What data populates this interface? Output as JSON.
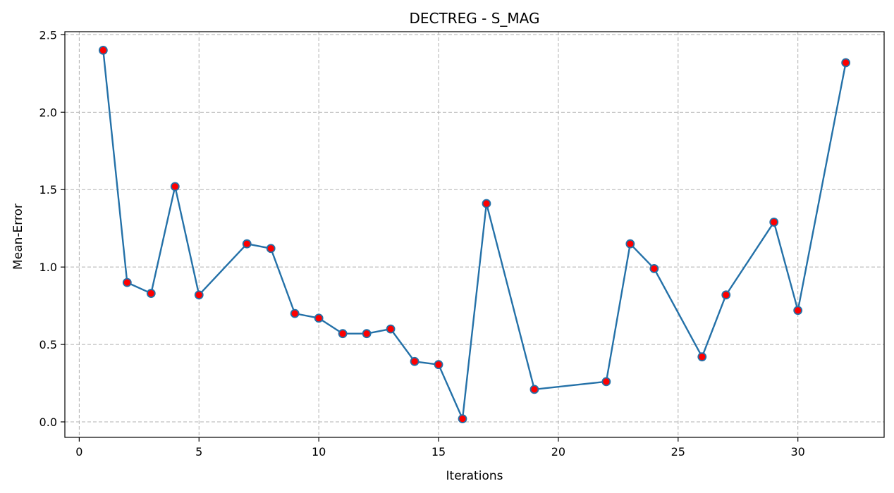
{
  "chart_data": {
    "type": "line",
    "title": "DECTREG - S_MAG",
    "xlabel": "Iterations",
    "ylabel": "Mean-Error",
    "xlim": [
      -0.6,
      33.6
    ],
    "ylim": [
      -0.1,
      2.52
    ],
    "x_ticks": [
      0,
      5,
      10,
      15,
      20,
      25,
      30
    ],
    "y_ticks": [
      0.0,
      0.5,
      1.0,
      1.5,
      2.0,
      2.5
    ],
    "y_tick_labels": [
      "0.0",
      "0.5",
      "1.0",
      "1.5",
      "2.0",
      "2.5"
    ],
    "grid": true,
    "line_color": "#2471a8",
    "marker_color": "#ff0000",
    "marker_edge_color": "#2471a8",
    "series": [
      {
        "x": [
          1,
          2,
          3,
          4,
          5,
          7,
          8,
          9,
          10,
          11,
          12,
          13,
          14,
          15,
          16,
          17,
          19,
          22,
          23,
          24,
          26,
          27,
          29,
          30,
          32
        ],
        "y": [
          2.4,
          0.9,
          0.83,
          1.52,
          0.82,
          1.15,
          1.12,
          0.7,
          0.67,
          0.57,
          0.57,
          0.6,
          0.39,
          0.37,
          0.02,
          1.41,
          0.21,
          0.26,
          1.15,
          0.99,
          0.42,
          0.82,
          1.29,
          0.72,
          2.32
        ]
      }
    ]
  }
}
